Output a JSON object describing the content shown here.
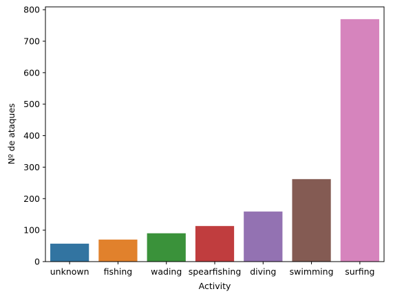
{
  "chart_data": {
    "type": "bar",
    "title": "",
    "xlabel": "Activity",
    "ylabel": "Nº de ataques",
    "categories": [
      "unknown",
      "fishing",
      "wading",
      "spearfishing",
      "diving",
      "swimming",
      "surfing"
    ],
    "values": [
      57,
      70,
      90,
      113,
      159,
      262,
      770
    ],
    "colors": [
      "#3274a1",
      "#e1812c",
      "#3a923a",
      "#c03d3e",
      "#9372b2",
      "#845b53",
      "#d684bd"
    ],
    "ylim": [
      0,
      809
    ],
    "yticks": [
      0,
      100,
      200,
      300,
      400,
      500,
      600,
      700,
      800
    ],
    "grid": false,
    "legend": "none"
  }
}
